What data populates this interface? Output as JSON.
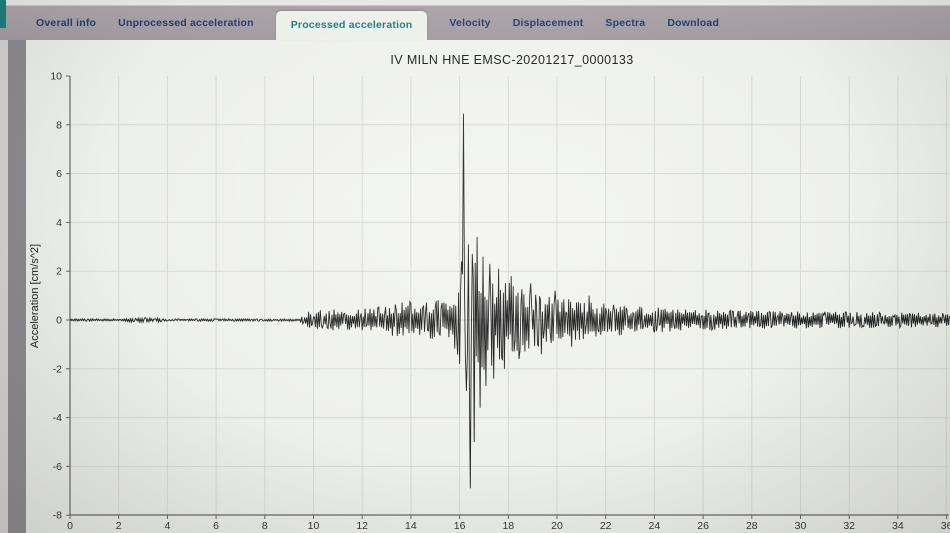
{
  "window": {
    "tabs": [
      {
        "id": "overall-info",
        "label": "Overall info",
        "active": false
      },
      {
        "id": "unprocessed-acceleration",
        "label": "Unprocessed acceleration",
        "active": false
      },
      {
        "id": "processed-acceleration",
        "label": "Processed acceleration",
        "active": true
      },
      {
        "id": "velocity",
        "label": "Velocity",
        "active": false
      },
      {
        "id": "displacement",
        "label": "Displacement",
        "active": false
      },
      {
        "id": "spectra",
        "label": "Spectra",
        "active": false
      },
      {
        "id": "download",
        "label": "Download",
        "active": false
      }
    ],
    "colors": {
      "tab_bar": "#a29ba0",
      "tab_text": "#1e3e74",
      "active_tab_text": "#17807e",
      "active_tab_bg": "#edefeb",
      "content_bg": "#eef0ec",
      "accent_teal": "#1a7e7c",
      "grid": "#d6d8d4",
      "axis": "#666666",
      "trace": "#222222"
    }
  },
  "chart_data": {
    "type": "line",
    "title": "IV MILN HNE EMSC-20201217_0000133",
    "xlabel": "",
    "ylabel": "Acceleration [cm/s^2]",
    "xlim": [
      0,
      36.1
    ],
    "ylim": [
      -8,
      10
    ],
    "x_ticks": [
      0,
      2,
      4,
      6,
      8,
      10,
      12,
      14,
      16,
      18,
      20,
      22,
      24,
      26,
      28,
      30,
      32,
      34,
      36
    ],
    "y_ticks": [
      10,
      8,
      6,
      4,
      2,
      0,
      -2,
      -4,
      -6,
      -8
    ],
    "grid": true,
    "legend": null,
    "peak_acceleration": 8.45,
    "peak_time_s": 16.16,
    "min_acceleration": -6.9,
    "envelope": [
      [
        0,
        0.05
      ],
      [
        2.2,
        0.05
      ],
      [
        2.5,
        0.1
      ],
      [
        3.6,
        0.1
      ],
      [
        3.9,
        0.05
      ],
      [
        9.4,
        0.05
      ],
      [
        9.8,
        0.35
      ],
      [
        10.6,
        0.45
      ],
      [
        11.4,
        0.4
      ],
      [
        12,
        0.45
      ],
      [
        13,
        0.6
      ],
      [
        13.6,
        0.75
      ],
      [
        15,
        0.8
      ],
      [
        15.6,
        0.95
      ],
      [
        15.95,
        1.5
      ],
      [
        16.1,
        2.2
      ],
      [
        16.5,
        2.4
      ],
      [
        16.8,
        2.3
      ],
      [
        17.2,
        2.0
      ],
      [
        17.8,
        1.7
      ],
      [
        18.4,
        1.4
      ],
      [
        19,
        1.2
      ],
      [
        19.6,
        1.05
      ],
      [
        20.4,
        0.9
      ],
      [
        21.2,
        0.8
      ],
      [
        22,
        0.7
      ],
      [
        23,
        0.6
      ],
      [
        24,
        0.52
      ],
      [
        25,
        0.47
      ],
      [
        26,
        0.42
      ],
      [
        28,
        0.38
      ],
      [
        30,
        0.35
      ],
      [
        32,
        0.33
      ],
      [
        34,
        0.31
      ],
      [
        36.2,
        0.3
      ]
    ],
    "peaks": [
      [
        15.98,
        -1.8
      ],
      [
        16.08,
        2.4
      ],
      [
        16.16,
        8.45
      ],
      [
        16.28,
        -2.9
      ],
      [
        16.36,
        3.1
      ],
      [
        16.44,
        -6.9
      ],
      [
        16.52,
        2.7
      ],
      [
        16.6,
        -5.0
      ],
      [
        16.72,
        3.4
      ],
      [
        16.84,
        -3.6
      ],
      [
        16.96,
        2.6
      ],
      [
        17.08,
        -2.7
      ],
      [
        17.24,
        2.3
      ],
      [
        17.4,
        -2.4
      ],
      [
        17.6,
        2.1
      ],
      [
        17.84,
        -2.0
      ],
      [
        18.12,
        1.8
      ],
      [
        18.44,
        -1.6
      ],
      [
        18.92,
        1.5
      ],
      [
        19.36,
        -1.4
      ],
      [
        19.92,
        1.2
      ],
      [
        20.6,
        -1.1
      ],
      [
        21.3,
        1.0
      ]
    ]
  }
}
